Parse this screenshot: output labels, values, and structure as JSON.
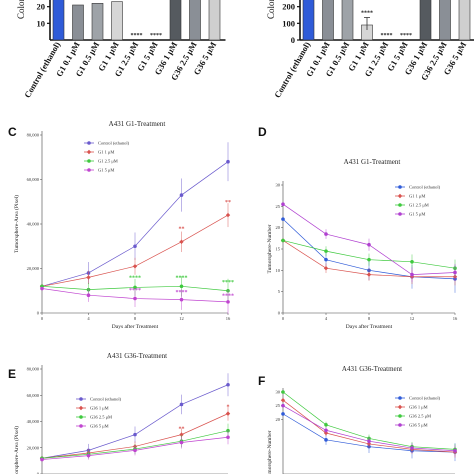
{
  "chart_data": [
    {
      "id": "A",
      "type": "bar",
      "ylabel": "Colon",
      "ylim": [
        0,
        30
      ],
      "yticks": [
        10,
        20
      ],
      "categories": [
        "Control (ethanol)",
        "G1 0.1 μM",
        "G1 0.5 μM",
        "G1 1 μM",
        "G1 2.5 μM",
        "G1 5 μM",
        "G36 1 μM",
        "G36 2.5 μM",
        "G36 5 μM"
      ],
      "values": [
        30,
        21,
        22,
        23,
        0,
        0,
        30,
        30,
        30
      ],
      "colors": [
        "#2f5bd8",
        "#8a8f96",
        "#9ea3a8",
        "#d6d6d6",
        "#ffffff",
        "#ffffff",
        "#555a5f",
        "#8a8f96",
        "#cfcfcf"
      ],
      "annotations": [
        {
          "label": "****",
          "index": 4
        },
        {
          "label": "****",
          "index": 5
        }
      ]
    },
    {
      "id": "B",
      "type": "bar",
      "ylabel": "Colon",
      "ylim": [
        0,
        300
      ],
      "yticks": [
        0,
        100,
        200
      ],
      "categories": [
        "Control (ethanol)",
        "G1 0.1 μM",
        "G1 0.5 μM",
        "G1 1 μM",
        "G1 2.5 μM",
        "G1 5 μM",
        "G36 1 μM",
        "G36 2.5 μM",
        "G36 5 μM"
      ],
      "values": [
        300,
        300,
        300,
        90,
        0,
        0,
        300,
        300,
        300
      ],
      "colors": [
        "#2f5bd8",
        "#8a8f96",
        "#9ea3a8",
        "#d6d6d6",
        "#ffffff",
        "#ffffff",
        "#555a5f",
        "#8a8f96",
        "#cfcfcf"
      ],
      "annotations": [
        {
          "label": "****",
          "index": 3
        },
        {
          "label": "****",
          "index": 4
        },
        {
          "label": "****",
          "index": 5
        }
      ]
    },
    {
      "id": "C",
      "letter": "C",
      "type": "line",
      "title": "A431 G1-Treatment",
      "xlabel": "Days after Treatment",
      "ylabel": "Tumorsphere-Area (Pixel)",
      "x": [
        0,
        4,
        8,
        12,
        16
      ],
      "xlim": [
        0,
        16
      ],
      "ylim": [
        0,
        80000
      ],
      "yticks": [
        0,
        20000,
        40000,
        60000,
        80000
      ],
      "ytick_labels": [
        "0",
        "20,000",
        "40,000",
        "60,000",
        "80,000"
      ],
      "legend": "top-left",
      "series": [
        {
          "name": "Control (ethanol)",
          "color": "#6a5acd",
          "values": [
            12000,
            18000,
            30000,
            53000,
            68000
          ]
        },
        {
          "name": "G1 1 μM",
          "color": "#d9534f",
          "values": [
            12000,
            16000,
            21000,
            32000,
            44000
          ]
        },
        {
          "name": "G1 2.5 μM",
          "color": "#3ec93e",
          "values": [
            12000,
            10500,
            11500,
            12000,
            10000
          ]
        },
        {
          "name": "G1 5 μM",
          "color": "#c045d0",
          "values": [
            11000,
            8000,
            6500,
            6000,
            5000
          ]
        }
      ],
      "annotations": [
        {
          "x": 12,
          "y": 37000,
          "label": "**",
          "color": "#d9534f"
        },
        {
          "x": 16,
          "y": 49000,
          "label": "**",
          "color": "#d9534f"
        },
        {
          "x": 8,
          "y": 15000,
          "label": "****",
          "color": "#3ec93e"
        },
        {
          "x": 12,
          "y": 15000,
          "label": "****",
          "color": "#3ec93e"
        },
        {
          "x": 16,
          "y": 13000,
          "label": "****",
          "color": "#3ec93e"
        },
        {
          "x": 8,
          "y": 9500,
          "label": "****",
          "color": "#c045d0"
        },
        {
          "x": 12,
          "y": 8500,
          "label": "****",
          "color": "#c045d0"
        },
        {
          "x": 16,
          "y": 7000,
          "label": "****",
          "color": "#c045d0"
        }
      ]
    },
    {
      "id": "D",
      "letter": "D",
      "type": "line",
      "title": "A431 G1-Treatment",
      "xlabel": "Days after Treatment",
      "ylabel": "Tumorsphere-Number",
      "x": [
        0,
        4,
        8,
        12,
        16
      ],
      "xlim": [
        0,
        16
      ],
      "ylim": [
        0,
        30
      ],
      "yticks": [
        0,
        5,
        10,
        15,
        20,
        25,
        30
      ],
      "legend": "right",
      "series": [
        {
          "name": "Control (ethanol)",
          "color": "#2f5bd8",
          "values": [
            22,
            12.5,
            10,
            8.5,
            8
          ]
        },
        {
          "name": "G1 1 μM",
          "color": "#d9534f",
          "values": [
            17,
            10.5,
            9,
            8.5,
            8.5
          ]
        },
        {
          "name": "G1 2.5 μM",
          "color": "#3ec93e",
          "values": [
            17,
            14.5,
            12.5,
            12,
            10.5
          ]
        },
        {
          "name": "G1 5 μM",
          "color": "#b040d0",
          "values": [
            25.5,
            18.5,
            16,
            9,
            9.5
          ]
        }
      ]
    },
    {
      "id": "E",
      "letter": "E",
      "type": "line",
      "title": "A431 G36-Treatment",
      "xlabel": "",
      "ylabel": "Tumorsphere-Area (Pixel)",
      "x": [
        0,
        4,
        8,
        12,
        16
      ],
      "xlim": [
        0,
        16
      ],
      "ylim": [
        0,
        80000
      ],
      "yticks": [
        0,
        20000,
        40000,
        60000,
        80000
      ],
      "ytick_labels": [
        "0",
        "20,000",
        "40,000",
        "60,000",
        "80,000"
      ],
      "legend": "left",
      "series": [
        {
          "name": "Control (ethanol)",
          "color": "#6a5acd",
          "values": [
            12000,
            18000,
            30000,
            53000,
            68000
          ]
        },
        {
          "name": "G36 1 μM",
          "color": "#d9534f",
          "values": [
            12000,
            16000,
            21000,
            30000,
            46000
          ]
        },
        {
          "name": "G36 2.5 μM",
          "color": "#3ec93e",
          "values": [
            12000,
            15000,
            19000,
            25000,
            33000
          ]
        },
        {
          "name": "G36 5 μM",
          "color": "#c045d0",
          "values": [
            11000,
            14000,
            18000,
            24000,
            28000
          ]
        }
      ],
      "annotations": [
        {
          "x": 12,
          "y": 33000,
          "label": "**",
          "color": "#d9534f"
        },
        {
          "x": 16,
          "y": 50000,
          "label": "*",
          "color": "#d9534f"
        }
      ]
    },
    {
      "id": "F",
      "letter": "F",
      "type": "line",
      "title": "A431 G36-Treatment",
      "xlabel": "",
      "ylabel": "Tumorsphere-Number",
      "x": [
        0,
        4,
        8,
        12,
        16
      ],
      "xlim": [
        0,
        16
      ],
      "ylim": [
        0,
        30
      ],
      "yticks": [
        20,
        25,
        30
      ],
      "legend": "right",
      "series": [
        {
          "name": "Control (ethanol)",
          "color": "#2f5bd8",
          "values": [
            22,
            12.5,
            10,
            8.5,
            8
          ]
        },
        {
          "name": "G36 1 μM",
          "color": "#d9534f",
          "values": [
            27,
            15,
            11,
            9,
            8
          ]
        },
        {
          "name": "G36 2.5 μM",
          "color": "#3ec93e",
          "values": [
            30,
            18,
            13,
            10,
            9
          ]
        },
        {
          "name": "G36 5 μM",
          "color": "#b040d0",
          "values": [
            25,
            16,
            12,
            9.5,
            8.5
          ]
        }
      ]
    }
  ]
}
